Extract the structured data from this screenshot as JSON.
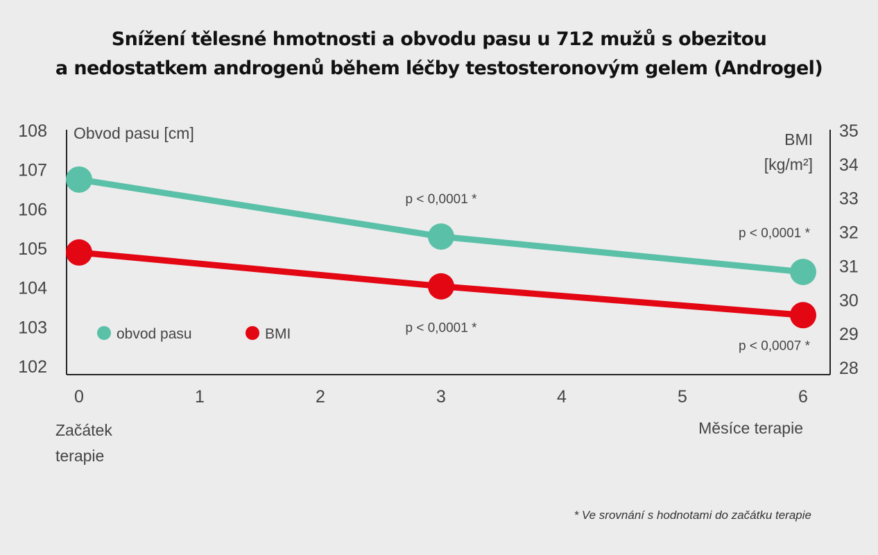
{
  "title": {
    "line1": "Snížení tělesné hmotnosti a obvodu pasu u 712 mužů s obezitou",
    "line2": "a nedostatkem androgenů během léčby testosteronovým gelem (Androgel)"
  },
  "footnote": "* Ve srovnání s hodnotami do začátku terapie",
  "colors": {
    "waist": "#5bc0a8",
    "bmi": "#e30613"
  },
  "chart_data": {
    "type": "line",
    "title": "Snížení tělesné hmotnosti a obvodu pasu u 712 mužů s obezitou a nedostatkem androgenů během léčby testosteronovým gelem (Androgel)",
    "x": [
      0,
      3,
      6
    ],
    "xlim": [
      0,
      6
    ],
    "x_ticks": [
      "0",
      "1",
      "2",
      "3",
      "4",
      "5",
      "6"
    ],
    "x_start_label": [
      "Začátek",
      "terapie"
    ],
    "xlabel": "Měsíce terapie",
    "y_left": {
      "label": "Obvod pasu [cm]",
      "lim": [
        102,
        108
      ],
      "ticks": [
        "102",
        "103",
        "104",
        "105",
        "106",
        "107",
        "108"
      ]
    },
    "y_right": {
      "label": [
        "BMI",
        "[kg/m²]"
      ],
      "lim": [
        28,
        35
      ],
      "ticks": [
        "28",
        "29",
        "30",
        "31",
        "32",
        "33",
        "34",
        "35"
      ]
    },
    "series": [
      {
        "name": "obvod pasu",
        "axis": "left",
        "color": "#5bc0a8",
        "values": [
          106.75,
          105.3,
          104.4
        ],
        "pvalues": [
          "",
          "p < 0,0001 *",
          "p < 0,0001 *"
        ]
      },
      {
        "name": "BMI",
        "axis": "right",
        "color": "#e30613",
        "values": [
          31.4,
          30.4,
          29.55
        ],
        "pvalues": [
          "",
          "p < 0,0001 *",
          "p < 0,0007 *"
        ]
      }
    ],
    "legend": "inside-left"
  }
}
